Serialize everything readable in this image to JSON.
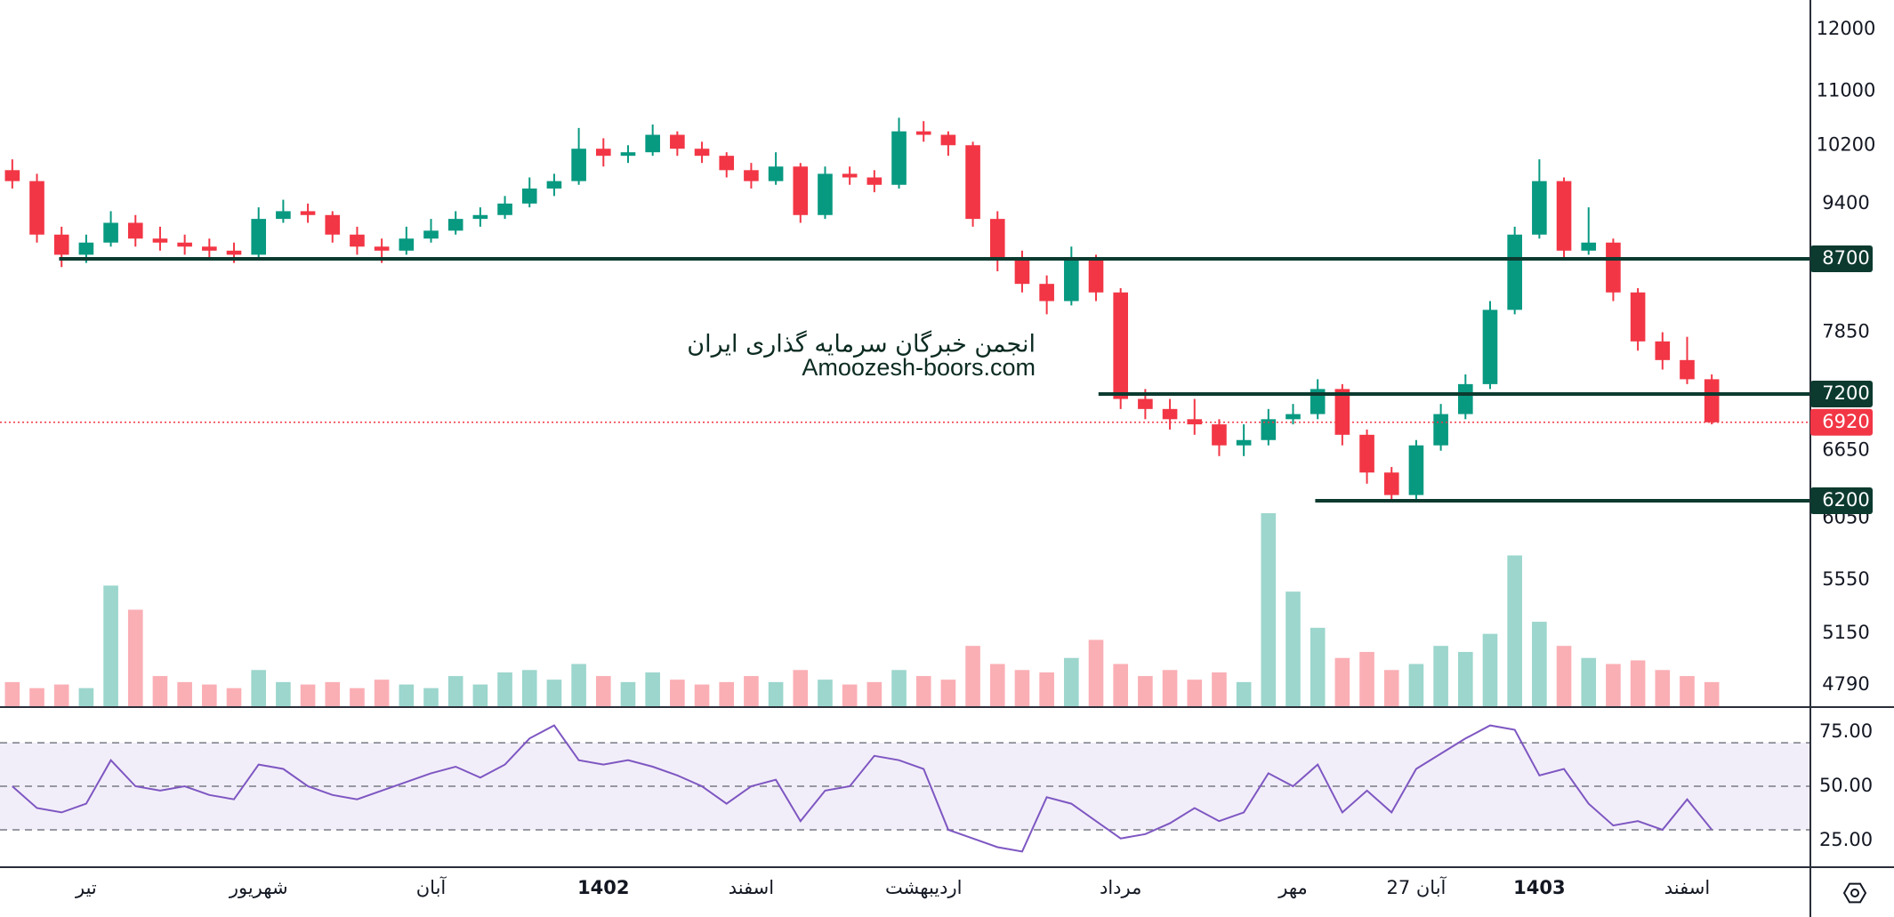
{
  "chart_data": [
    {
      "type": "candlestick",
      "log_scale": true,
      "grid": false,
      "ylim": [
        4650,
        12500
      ],
      "yticks": [
        12000,
        11000,
        10200,
        9400,
        7850,
        6650,
        6050,
        5550,
        5150,
        4790
      ],
      "levels": [
        8700,
        7200,
        6200
      ],
      "last_price": 6920,
      "up_color": "#089981",
      "down_color": "#f23645",
      "level_color": "#0c3a2f",
      "last_color": "#f23645",
      "watermark": [
        "انجمن خبرگان سرمایه گذاری ایران",
        "Amoozesh-boors.com"
      ],
      "categories": [
        null,
        null,
        null,
        "تیر",
        null,
        null,
        null,
        null,
        null,
        null,
        "شهریور",
        null,
        null,
        null,
        null,
        null,
        null,
        "آبان",
        null,
        null,
        null,
        null,
        null,
        null,
        "1402",
        null,
        null,
        null,
        null,
        null,
        "اسفند",
        null,
        null,
        null,
        null,
        null,
        null,
        "اردیبهشت",
        null,
        null,
        null,
        null,
        null,
        null,
        null,
        "مرداد",
        null,
        null,
        null,
        null,
        null,
        null,
        "مهر",
        null,
        null,
        null,
        null,
        "27 آبان",
        null,
        null,
        null,
        null,
        "1403",
        null,
        null,
        null,
        null,
        null,
        "اسفند",
        null
      ],
      "open": [
        9850,
        9700,
        9000,
        8750,
        8900,
        9150,
        8950,
        8900,
        8850,
        8800,
        8750,
        9200,
        9300,
        9250,
        9000,
        8850,
        8800,
        8950,
        9050,
        9200,
        9250,
        9400,
        9600,
        9700,
        10150,
        10050,
        10100,
        10350,
        10150,
        10050,
        9850,
        9700,
        9900,
        9250,
        9800,
        9750,
        9650,
        10400,
        10350,
        10200,
        9200,
        8700,
        8400,
        8200,
        8700,
        8300,
        7150,
        7050,
        6950,
        6900,
        6700,
        6750,
        6950,
        7000,
        7250,
        6800,
        6450,
        6250,
        6700,
        7000,
        7300,
        8100,
        9000,
        9700,
        8800,
        8900,
        8300,
        7750,
        7550,
        7350
      ],
      "high": [
        10000,
        9800,
        9100,
        9000,
        9300,
        9250,
        9100,
        9000,
        8950,
        8900,
        9350,
        9450,
        9400,
        9300,
        9100,
        8950,
        9100,
        9200,
        9300,
        9350,
        9500,
        9750,
        9800,
        10450,
        10300,
        10200,
        10500,
        10400,
        10250,
        10100,
        9950,
        10100,
        9950,
        9900,
        9900,
        9850,
        10600,
        10550,
        10400,
        10250,
        9300,
        8800,
        8500,
        8850,
        8750,
        8350,
        7250,
        7150,
        7150,
        6950,
        6900,
        7050,
        7100,
        7350,
        7300,
        6850,
        6500,
        6750,
        7100,
        7400,
        8200,
        9100,
        10000,
        9750,
        9350,
        8950,
        8350,
        7850,
        7800,
        7400
      ],
      "low": [
        9600,
        8900,
        8600,
        8650,
        8850,
        8850,
        8800,
        8750,
        8700,
        8650,
        8700,
        9150,
        9150,
        8900,
        8750,
        8650,
        8750,
        8900,
        9000,
        9100,
        9200,
        9350,
        9500,
        9650,
        9900,
        9950,
        10050,
        10050,
        9950,
        9750,
        9600,
        9650,
        9150,
        9200,
        9650,
        9550,
        9600,
        10250,
        10050,
        9100,
        8550,
        8300,
        8050,
        8150,
        8200,
        7050,
        6950,
        6850,
        6800,
        6600,
        6600,
        6700,
        6900,
        6950,
        6700,
        6350,
        6200,
        6200,
        6650,
        6950,
        7250,
        8050,
        8950,
        8700,
        8750,
        8200,
        7650,
        7450,
        7300,
        6900
      ],
      "close": [
        9700,
        9000,
        8750,
        8900,
        9150,
        8950,
        8900,
        8850,
        8800,
        8750,
        9200,
        9300,
        9250,
        9000,
        8850,
        8800,
        8950,
        9050,
        9200,
        9250,
        9400,
        9600,
        9700,
        10150,
        10050,
        10100,
        10350,
        10150,
        10050,
        9850,
        9700,
        9900,
        9250,
        9800,
        9750,
        9650,
        10400,
        10350,
        10200,
        9200,
        8700,
        8400,
        8200,
        8700,
        8300,
        7150,
        7050,
        6950,
        6900,
        6700,
        6750,
        6950,
        7000,
        7250,
        6800,
        6450,
        6250,
        6700,
        7000,
        7300,
        8100,
        9000,
        9700,
        8800,
        8900,
        8300,
        7750,
        7550,
        7350,
        6920
      ],
      "volume": [
        20,
        15,
        18,
        15,
        100,
        80,
        25,
        20,
        18,
        15,
        30,
        20,
        18,
        20,
        15,
        22,
        18,
        15,
        25,
        18,
        28,
        30,
        22,
        35,
        25,
        20,
        28,
        22,
        18,
        20,
        25,
        20,
        30,
        22,
        18,
        20,
        30,
        25,
        22,
        50,
        35,
        30,
        28,
        40,
        55,
        35,
        25,
        30,
        22,
        28,
        20,
        160,
        95,
        65,
        40,
        45,
        30,
        35,
        50,
        45,
        60,
        125,
        70,
        50,
        40,
        35,
        38,
        30,
        25,
        20
      ]
    },
    {
      "type": "line",
      "color": "#7e57c2",
      "ylim": [
        12.8,
        85.6
      ],
      "yticks": [
        {
          "value": 25,
          "label": "25.00"
        },
        {
          "value": 50,
          "label": "50.00"
        },
        {
          "value": 75,
          "label": "75.00"
        }
      ],
      "bands": [
        30,
        50,
        70
      ],
      "values": [
        50,
        40,
        38,
        42,
        62,
        50,
        48,
        50,
        46,
        44,
        60,
        58,
        50,
        46,
        44,
        48,
        52,
        56,
        59,
        54,
        60,
        72,
        78,
        62,
        60,
        62,
        59,
        55,
        50,
        42,
        50,
        53,
        34,
        48,
        50,
        64,
        62,
        58,
        30,
        26,
        22,
        20,
        45,
        42,
        34,
        26,
        28,
        33,
        40,
        34,
        38,
        56,
        50,
        60,
        38,
        48,
        38,
        58,
        65,
        72,
        78,
        76,
        55,
        58,
        42,
        32,
        34,
        30,
        44,
        30
      ]
    }
  ]
}
